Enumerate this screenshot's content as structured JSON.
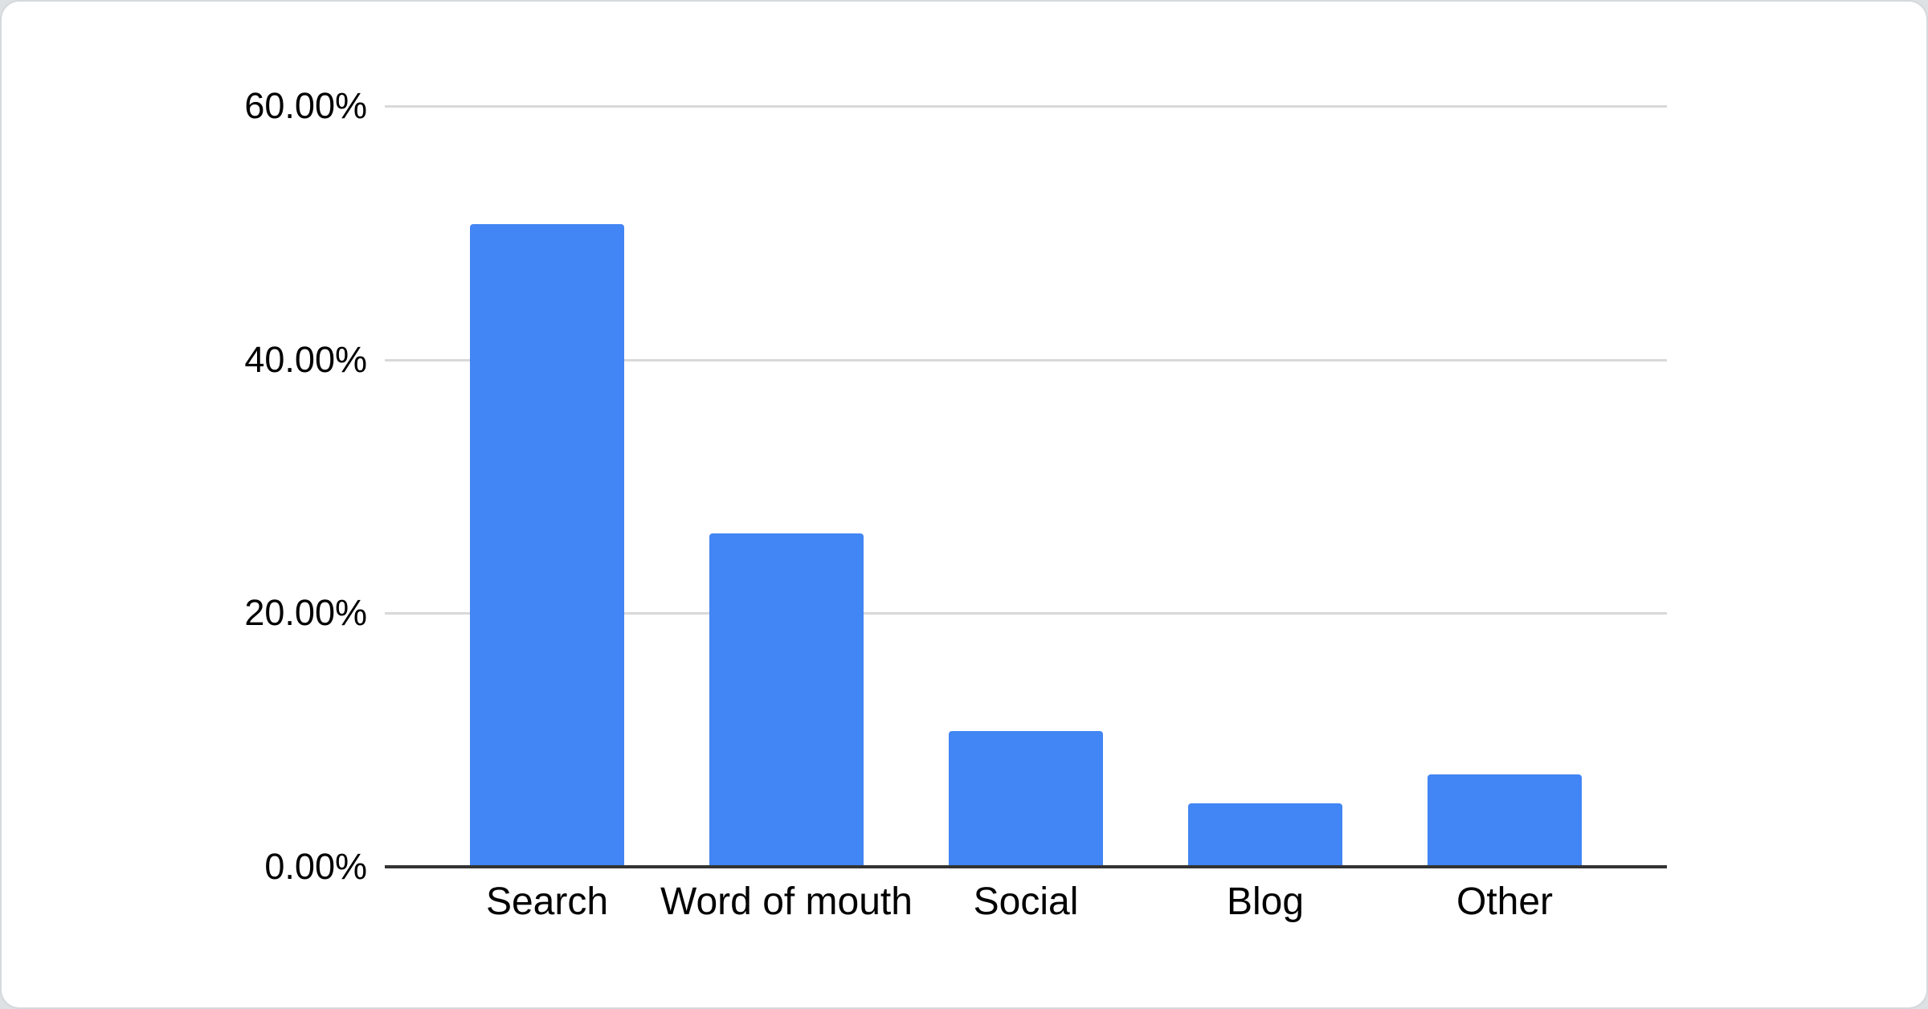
{
  "chart_data": {
    "type": "bar",
    "categories": [
      "Search",
      "Word of mouth",
      "Social",
      "Blog",
      "Other"
    ],
    "values": [
      50.7,
      26.3,
      10.7,
      5.0,
      7.3
    ],
    "values_format": "percent",
    "title": "",
    "xlabel": "",
    "ylabel": "",
    "ylim": [
      0,
      60
    ],
    "yticks": [
      "60.00%",
      "40.00%",
      "20.00%",
      "0.00%"
    ],
    "grid": "horizontal",
    "legend": "none",
    "bar_color": "#4285f4",
    "gridline_color": "#d9d9d9",
    "axis_line_color": "#333333",
    "label_color": "#000000"
  }
}
